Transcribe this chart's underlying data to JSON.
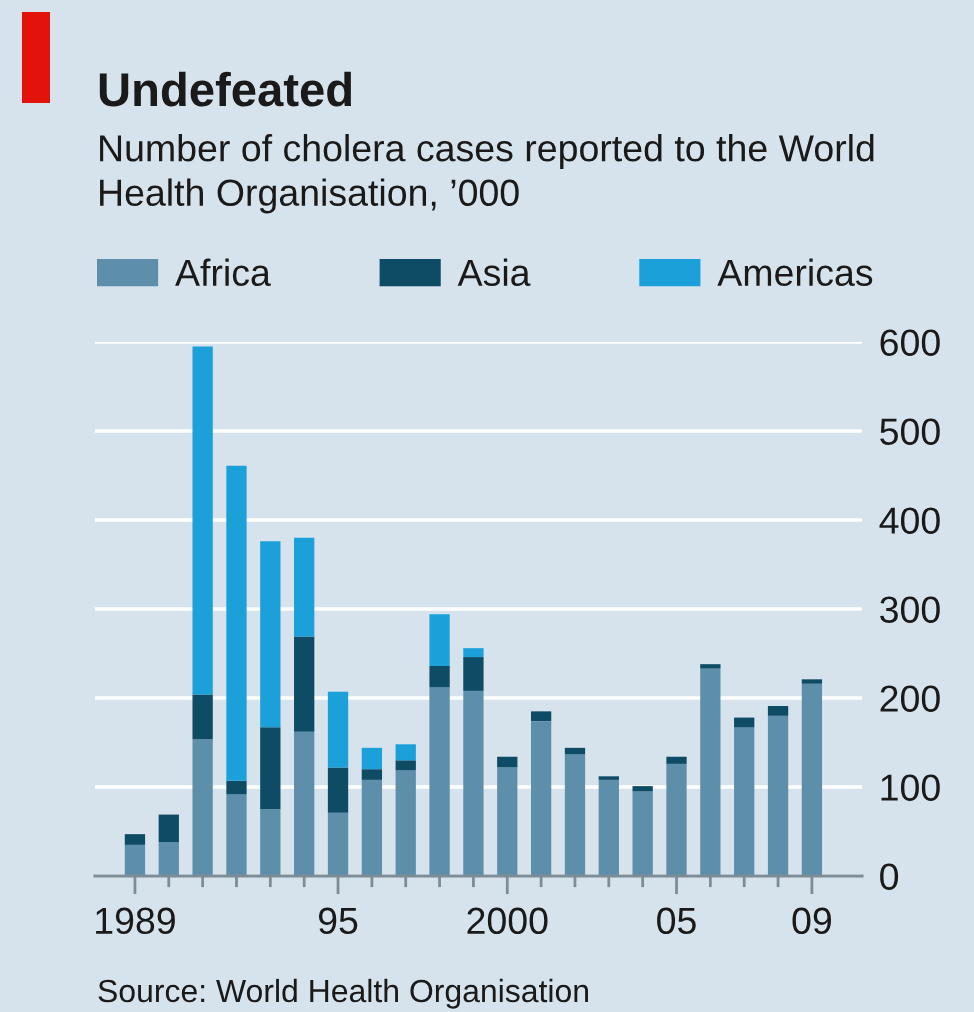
{
  "chart_data": {
    "type": "bar",
    "title": "Undefeated",
    "subtitle": "Number of cholera cases reported to the World Health Organisation, ’000",
    "categories": [
      "1989",
      null,
      null,
      null,
      null,
      null,
      "95",
      null,
      null,
      null,
      null,
      "2000",
      null,
      null,
      null,
      null,
      "05",
      null,
      null,
      null,
      "09"
    ],
    "stacked": true,
    "series": [
      {
        "name": "Africa",
        "color": "#5e8faa",
        "values": [
          35,
          38,
          154,
          92,
          75,
          162,
          71,
          108,
          119,
          212,
          208,
          122,
          174,
          137,
          108,
          95,
          126,
          233,
          167,
          180,
          216
        ]
      },
      {
        "name": "Asia",
        "color": "#0e4b65",
        "values": [
          12,
          31,
          50,
          15,
          92,
          107,
          51,
          12,
          11,
          24,
          38,
          12,
          11,
          7,
          4,
          6,
          8,
          5,
          11,
          11,
          5
        ]
      },
      {
        "name": "Americas",
        "color": "#1ba0da",
        "values": [
          null,
          null,
          391,
          354,
          209,
          111,
          85,
          24,
          18,
          58,
          10,
          null,
          null,
          null,
          null,
          null,
          null,
          null,
          null,
          null,
          null
        ]
      }
    ],
    "ylim": [
      0,
      600
    ],
    "yticks": [
      0,
      100,
      200,
      300,
      400,
      500,
      600
    ],
    "grid": "y",
    "legend": "top",
    "annotations": [
      "Source: World Health Organisation"
    ]
  }
}
